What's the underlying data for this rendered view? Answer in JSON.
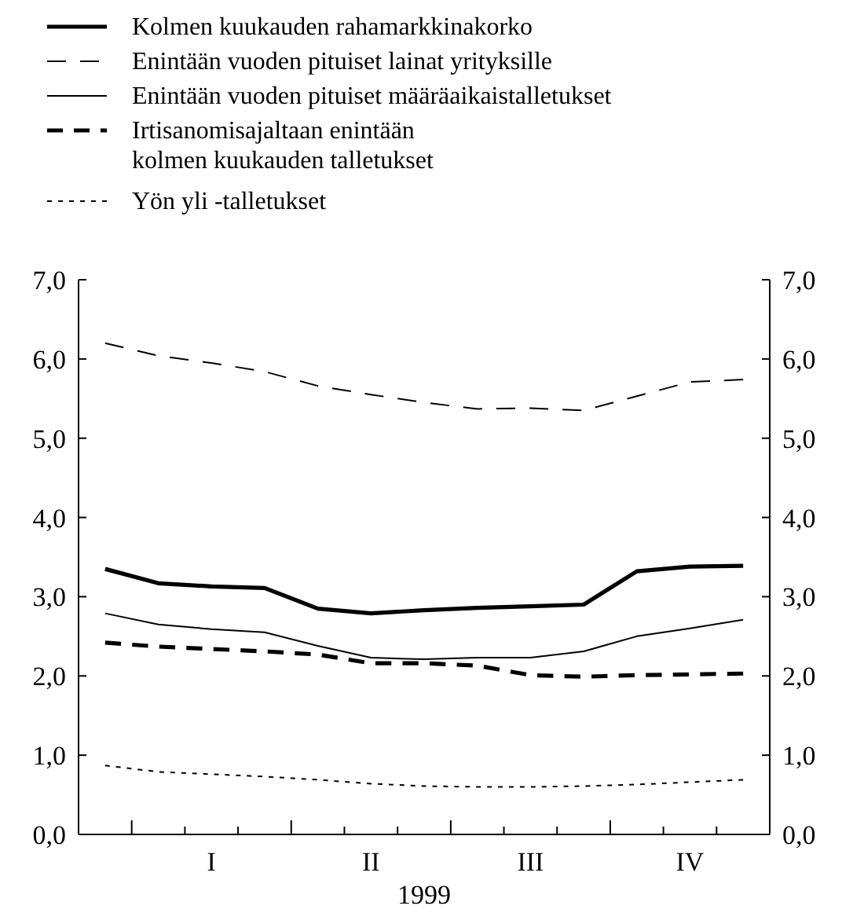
{
  "chart_data": {
    "type": "line",
    "xlabel": "1999",
    "categories": [
      null,
      null,
      "I",
      null,
      null,
      "II",
      null,
      null,
      "III",
      null,
      null,
      "IV",
      null
    ],
    "ylim": [
      0,
      7
    ],
    "yticks": [
      {
        "value": 0,
        "label": "0,0"
      },
      {
        "value": 1,
        "label": "1,0"
      },
      {
        "value": 2,
        "label": "2,0"
      },
      {
        "value": 3,
        "label": "3,0"
      },
      {
        "value": 4,
        "label": "4,0"
      },
      {
        "value": 5,
        "label": "5,0"
      },
      {
        "value": 6,
        "label": "6,0"
      },
      {
        "value": 7,
        "label": "7,0"
      }
    ],
    "y2lim": [
      0,
      7
    ],
    "y2ticks": [
      {
        "value": 0,
        "label": "0,0"
      },
      {
        "value": 1,
        "label": "1,0"
      },
      {
        "value": 2,
        "label": "2,0"
      },
      {
        "value": 3,
        "label": "3,0"
      },
      {
        "value": 4,
        "label": "4,0"
      },
      {
        "value": 5,
        "label": "5,0"
      },
      {
        "value": 6,
        "label": "6,0"
      },
      {
        "value": 7,
        "label": "7,0"
      }
    ],
    "legend": "top",
    "series": [
      {
        "name": "Kolmen kuukauden rahamarkkinakorko",
        "color": "#000000",
        "line_style": "solid",
        "values": [
          3.35,
          3.17,
          3.13,
          3.11,
          2.85,
          2.79,
          2.83,
          2.86,
          2.88,
          2.9,
          3.32,
          3.38,
          3.39
        ]
      },
      {
        "name": "Enintään vuoden pituiset lainat yrityksille",
        "color": "#000000",
        "line_style": "dashed",
        "values": [
          6.2,
          6.04,
          5.95,
          5.84,
          5.66,
          5.55,
          5.45,
          5.37,
          5.38,
          5.35,
          5.53,
          5.71,
          5.74
        ]
      },
      {
        "name": "Enintään vuoden pituiset määräaikaistalletukset",
        "color": "#000000",
        "line_style": "solid",
        "values": [
          2.79,
          2.65,
          2.59,
          2.55,
          2.38,
          2.23,
          2.21,
          2.23,
          2.23,
          2.31,
          2.5,
          2.6,
          2.71
        ]
      },
      {
        "name": "Irtisanomisajaltaan enintään\nkolmen kuukauden talletukset",
        "color": "#000000",
        "line_style": "dashed",
        "values": [
          2.42,
          2.37,
          2.34,
          2.31,
          2.27,
          2.16,
          2.16,
          2.13,
          2.01,
          1.99,
          2.01,
          2.02,
          2.03
        ]
      },
      {
        "name": "Yön yli -talletukset",
        "color": "#000000",
        "line_style": "dotted",
        "values": [
          0.87,
          0.79,
          0.76,
          0.73,
          0.69,
          0.64,
          0.61,
          0.6,
          0.6,
          0.61,
          0.63,
          0.66,
          0.69
        ]
      }
    ]
  }
}
